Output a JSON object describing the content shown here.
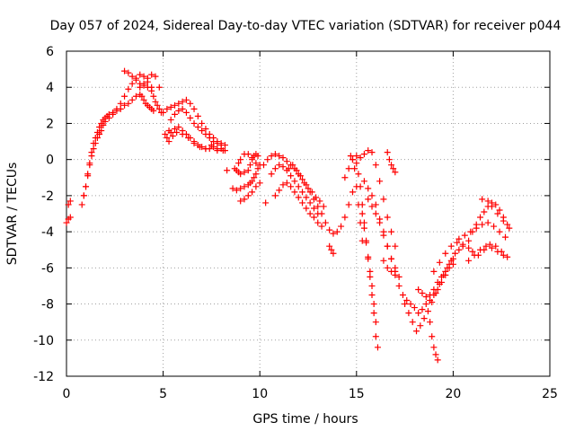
{
  "chart_data": {
    "type": "scatter",
    "title": "Day 057 of 2024, Sidereal Day-to-day VTEC variation (SDTVAR) for receiver p044",
    "xlabel": "GPS time / hours",
    "ylabel": "SDTVAR / TECUs",
    "xlim": [
      0,
      25
    ],
    "ylim": [
      -12,
      6
    ],
    "x_ticks": [
      0,
      5,
      10,
      15,
      20,
      25
    ],
    "y_ticks": [
      -12,
      -10,
      -8,
      -6,
      -4,
      -2,
      0,
      2,
      4,
      6
    ],
    "x_tick_labels": [
      "0",
      "5",
      "10",
      "15",
      "20",
      "25"
    ],
    "y_tick_labels": [
      "-12",
      "-10",
      "-8",
      "-6",
      "-4",
      "-2",
      "0",
      "2",
      "4",
      "6"
    ],
    "grid": true,
    "marker": "plus",
    "color": "#ff0000",
    "series": [
      {
        "x": [
          0.0,
          0.1,
          0.2,
          0.1,
          0.2
        ],
        "y": [
          -3.5,
          -3.3,
          -3.2,
          -2.5,
          -2.3
        ]
      },
      {
        "x": [
          0.8,
          0.9,
          1.0,
          1.1,
          1.2,
          1.3,
          1.4,
          1.5,
          1.6,
          1.7,
          1.8,
          1.9,
          2.0,
          2.1,
          2.2,
          2.4,
          2.6,
          2.8,
          3.0,
          3.2,
          3.4,
          3.6,
          3.8,
          3.9,
          4.0,
          4.1,
          4.2,
          4.3,
          4.4,
          4.5
        ],
        "y": [
          -2.5,
          -2.0,
          -1.5,
          -0.8,
          -0.2,
          0.4,
          0.9,
          1.2,
          1.5,
          1.8,
          2.0,
          2.2,
          2.3,
          2.4,
          2.5,
          2.6,
          2.7,
          2.8,
          3.0,
          3.1,
          3.3,
          3.5,
          3.6,
          3.5,
          3.3,
          3.1,
          3.0,
          2.9,
          2.8,
          2.7
        ]
      },
      {
        "x": [
          0.9,
          1.0,
          1.1,
          1.2,
          1.3,
          1.4,
          1.5,
          1.6,
          1.7,
          1.8,
          1.9,
          2.0,
          2.2,
          2.4,
          2.6,
          2.8,
          3.0,
          3.2,
          3.4,
          3.6,
          3.8,
          4.0,
          4.2,
          4.4
        ],
        "y": [
          -2.0,
          -1.5,
          -0.9,
          -0.3,
          0.2,
          0.6,
          0.9,
          1.2,
          1.4,
          1.6,
          1.9,
          2.1,
          2.3,
          2.5,
          2.8,
          3.1,
          3.5,
          3.9,
          4.2,
          4.5,
          4.7,
          4.6,
          4.3,
          4.0
        ]
      },
      {
        "x": [
          3.0,
          3.2,
          3.4,
          3.6,
          3.8,
          4.0,
          4.2,
          4.4,
          4.5,
          4.6,
          4.7,
          4.8,
          4.9
        ],
        "y": [
          4.9,
          4.8,
          4.6,
          4.4,
          4.2,
          4.1,
          4.0,
          3.8,
          3.5,
          3.2,
          3.0,
          2.8,
          2.6
        ]
      },
      {
        "x": [
          3.8,
          4.0,
          4.2,
          4.4,
          4.6,
          4.8
        ],
        "y": [
          4.0,
          4.2,
          4.5,
          4.7,
          4.6,
          4.0
        ]
      },
      {
        "x": [
          5.0,
          5.2,
          5.4,
          5.6,
          5.8,
          6.0,
          6.2,
          6.4,
          6.6,
          6.8,
          7.0,
          7.2,
          7.4,
          7.6,
          7.8,
          8.0,
          8.2
        ],
        "y": [
          2.6,
          2.8,
          2.9,
          3.0,
          3.1,
          3.2,
          3.3,
          3.1,
          2.8,
          2.4,
          2.0,
          1.7,
          1.4,
          1.2,
          1.0,
          0.9,
          0.8
        ]
      },
      {
        "x": [
          5.4,
          5.6,
          5.8,
          6.0,
          6.2,
          6.4,
          6.6,
          6.8,
          7.0,
          7.2,
          7.4,
          7.6,
          7.8,
          8.0
        ],
        "y": [
          2.2,
          2.5,
          2.7,
          2.8,
          2.6,
          2.3,
          2.0,
          1.8,
          1.6,
          1.4,
          1.2,
          1.0,
          0.9,
          0.8
        ]
      },
      {
        "x": [
          5.2,
          5.4,
          5.6,
          5.8,
          6.0,
          6.2,
          6.4,
          6.6,
          6.8,
          7.0,
          7.2,
          7.4,
          7.6,
          7.8,
          8.0,
          8.2
        ],
        "y": [
          1.2,
          1.5,
          1.7,
          1.8,
          1.6,
          1.4,
          1.2,
          1.0,
          0.8,
          0.7,
          0.6,
          0.6,
          0.7,
          0.5,
          0.6,
          0.5
        ]
      },
      {
        "x": [
          5.3,
          5.5,
          5.7,
          6.0,
          6.3,
          6.6,
          6.9,
          7.2,
          7.5,
          7.8,
          8.1
        ],
        "y": [
          1.0,
          1.3,
          1.5,
          1.4,
          1.2,
          0.9,
          0.7,
          0.6,
          0.8,
          0.6,
          0.5
        ]
      },
      {
        "x": [
          5.1,
          5.3
        ],
        "y": [
          1.4,
          1.6
        ]
      },
      {
        "x": [
          8.3
        ],
        "y": [
          -0.6
        ]
      },
      {
        "x": [
          8.7,
          8.8,
          8.9,
          9.0,
          9.2,
          9.4,
          9.5,
          9.6,
          9.7,
          9.8,
          9.9
        ],
        "y": [
          -0.5,
          -0.6,
          -0.7,
          -0.8,
          -0.7,
          -0.6,
          -0.3,
          0.0,
          0.2,
          0.3,
          0.2
        ]
      },
      {
        "x": [
          8.9,
          9.0,
          9.2,
          9.4,
          9.6,
          9.8
        ],
        "y": [
          -0.2,
          0.0,
          0.3,
          0.3,
          0.1,
          -0.2
        ]
      },
      {
        "x": [
          8.6,
          8.8,
          9.0,
          9.2,
          9.4,
          9.5,
          9.6,
          9.7,
          9.8,
          9.9,
          10.0
        ],
        "y": [
          -1.6,
          -1.7,
          -1.6,
          -1.5,
          -1.4,
          -1.3,
          -1.2,
          -1.0,
          -0.8,
          -0.5,
          -0.3
        ]
      },
      {
        "x": [
          9.0,
          9.2,
          9.4,
          9.6,
          9.8,
          10.0
        ],
        "y": [
          -2.3,
          -2.2,
          -2.0,
          -1.8,
          -1.5,
          -1.3
        ]
      },
      {
        "x": [
          10.3
        ],
        "y": [
          -2.4
        ]
      },
      {
        "x": [
          10.2,
          10.4,
          10.6,
          10.8,
          11.0,
          11.2,
          11.4,
          11.6,
          11.8,
          12.0,
          12.2,
          12.4,
          12.6,
          12.8,
          13.0,
          13.2,
          13.4,
          13.6,
          13.8,
          14.0,
          14.2,
          14.4,
          14.6,
          14.8
        ],
        "y": [
          -0.3,
          0.0,
          0.2,
          0.3,
          0.2,
          0.1,
          -0.1,
          -0.3,
          -0.5,
          -0.8,
          -1.1,
          -1.4,
          -1.8,
          -2.2,
          -2.6,
          -3.0,
          -3.5,
          -3.9,
          -4.1,
          -4.0,
          -3.7,
          -3.2,
          -2.5,
          -1.8
        ]
      },
      {
        "x": [
          10.6,
          10.8,
          11.0,
          11.2,
          11.4,
          11.6,
          11.8,
          12.0,
          12.2,
          12.4,
          12.6,
          12.8,
          13.0
        ],
        "y": [
          -0.8,
          -0.5,
          -0.3,
          -0.4,
          -0.6,
          -0.9,
          -1.2,
          -1.5,
          -1.8,
          -2.1,
          -2.4,
          -2.7,
          -3.0
        ]
      },
      {
        "x": [
          10.8,
          11.0,
          11.2,
          11.4,
          11.6,
          11.8,
          12.0,
          12.2,
          12.4,
          12.6,
          12.8,
          13.0,
          13.2
        ],
        "y": [
          -2.0,
          -1.7,
          -1.4,
          -1.3,
          -1.5,
          -1.8,
          -2.1,
          -2.4,
          -2.7,
          -3.0,
          -3.2,
          -3.5,
          -3.7
        ]
      },
      {
        "x": [
          11.5,
          11.7,
          11.9,
          12.1,
          12.3,
          12.5,
          12.7,
          12.9,
          13.1,
          13.3
        ],
        "y": [
          -0.5,
          -0.3,
          -0.6,
          -0.9,
          -1.3,
          -1.6,
          -1.8,
          -2.1,
          -2.3,
          -2.6
        ]
      },
      {
        "x": [
          13.6,
          13.7,
          13.8
        ],
        "y": [
          -4.8,
          -5.0,
          -5.2
        ]
      },
      {
        "x": [
          14.4,
          14.6,
          14.8,
          15.0,
          15.2,
          15.4,
          15.6,
          15.8,
          16.0,
          16.2,
          16.4,
          16.6,
          16.8,
          17.0
        ],
        "y": [
          -1.0,
          -0.5,
          0.0,
          0.2,
          0.1,
          0.3,
          0.5,
          0.4,
          -0.3,
          -1.2,
          -2.2,
          -3.2,
          -4.0,
          -4.8
        ]
      },
      {
        "x": [
          14.7,
          14.8,
          14.9,
          15.0,
          15.1,
          15.2,
          15.3
        ],
        "y": [
          0.2,
          0.0,
          -0.5,
          -1.5,
          -2.5,
          -3.5,
          -4.5
        ]
      },
      {
        "x": [
          15.0,
          15.1,
          15.2,
          15.3,
          15.4,
          15.5,
          15.6,
          15.7,
          15.8,
          15.9,
          16.0
        ],
        "y": [
          -0.2,
          -0.8,
          -1.5,
          -2.5,
          -3.5,
          -4.5,
          -5.5,
          -6.5,
          -7.5,
          -8.5,
          -9.8
        ]
      },
      {
        "x": [
          15.3,
          15.4,
          15.5,
          15.6,
          15.7,
          15.8,
          15.9,
          16.0,
          16.1
        ],
        "y": [
          -3.0,
          -3.8,
          -4.6,
          -5.4,
          -6.2,
          -7.0,
          -8.0,
          -9.0,
          -10.4
        ]
      },
      {
        "x": [
          15.4,
          15.6,
          15.8,
          16.0,
          16.2,
          16.4,
          16.6,
          16.8,
          17.0,
          17.2
        ],
        "y": [
          -1.2,
          -1.6,
          -2.0,
          -2.5,
          -3.3,
          -4.0,
          -4.8,
          -5.5,
          -6.0,
          -6.5
        ]
      },
      {
        "x": [
          15.6,
          15.8,
          16.0,
          16.2,
          16.4,
          16.6,
          16.8,
          17.0
        ],
        "y": [
          -2.2,
          -2.6,
          -3.0,
          -3.5,
          -4.2,
          -4.8,
          -5.5,
          -6.2
        ]
      },
      {
        "x": [
          16.6,
          16.7,
          16.8,
          16.9,
          17.0
        ],
        "y": [
          0.4,
          0.0,
          -0.3,
          -0.5,
          -0.7
        ]
      },
      {
        "x": [
          16.4,
          16.6,
          16.8,
          17.0
        ],
        "y": [
          -5.6,
          -6.0,
          -6.2,
          -6.4
        ]
      },
      {
        "x": [
          17.2,
          17.4,
          17.6,
          17.8,
          18.0,
          18.2,
          18.4,
          18.6,
          18.8,
          19.0,
          19.2,
          19.4,
          19.6,
          19.8,
          20.0
        ],
        "y": [
          -7.0,
          -7.5,
          -7.8,
          -8.0,
          -8.2,
          -8.5,
          -8.3,
          -8.0,
          -7.5,
          -7.2,
          -6.8,
          -6.5,
          -6.2,
          -5.8,
          -5.5
        ]
      },
      {
        "x": [
          17.5,
          17.7,
          17.9,
          18.1,
          18.3,
          18.5,
          18.7,
          18.9,
          19.1,
          19.3,
          19.5,
          19.7,
          19.9,
          20.1,
          20.3,
          20.5
        ],
        "y": [
          -8.0,
          -8.5,
          -9.0,
          -9.5,
          -9.2,
          -8.8,
          -8.4,
          -7.9,
          -7.4,
          -6.9,
          -6.4,
          -6.0,
          -5.6,
          -5.2,
          -5.0,
          -4.8
        ]
      },
      {
        "x": [
          18.2,
          18.4,
          18.6,
          18.8,
          19.0,
          19.2,
          19.4,
          19.6,
          19.8,
          20.0
        ],
        "y": [
          -7.2,
          -7.4,
          -7.6,
          -7.8,
          -7.5,
          -7.2,
          -6.8,
          -6.4,
          -6.0,
          -5.8
        ]
      },
      {
        "x": [
          18.8,
          18.9,
          19.0,
          19.1,
          19.2
        ],
        "y": [
          -9.0,
          -9.8,
          -10.4,
          -10.8,
          -11.1
        ]
      },
      {
        "x": [
          19.0,
          19.3,
          19.6,
          19.9,
          20.2,
          20.5,
          20.8,
          21.0,
          21.3,
          21.6,
          21.9,
          22.2,
          22.5,
          22.8
        ],
        "y": [
          -6.2,
          -5.7,
          -5.2,
          -4.8,
          -4.6,
          -4.7,
          -4.9,
          -5.1,
          -5.3,
          -5.0,
          -4.7,
          -4.8,
          -5.1,
          -5.4
        ]
      },
      {
        "x": [
          20.3,
          20.6,
          20.9,
          21.2,
          21.5,
          21.8,
          22.1,
          22.4,
          22.7
        ],
        "y": [
          -4.4,
          -4.2,
          -4.0,
          -3.8,
          -3.6,
          -3.5,
          -3.7,
          -4.0,
          -4.3
        ]
      },
      {
        "x": [
          20.8,
          21.0,
          21.2,
          21.4,
          21.6,
          21.8,
          22.0,
          22.2,
          22.4,
          22.6,
          22.8
        ],
        "y": [
          -4.5,
          -4.0,
          -3.6,
          -3.2,
          -2.9,
          -2.6,
          -2.4,
          -2.5,
          -2.8,
          -3.2,
          -3.6
        ]
      },
      {
        "x": [
          21.5,
          21.8,
          22.0,
          22.3,
          22.6,
          22.9
        ],
        "y": [
          -2.2,
          -2.3,
          -2.6,
          -3.0,
          -3.4,
          -3.8
        ]
      },
      {
        "x": [
          20.8,
          21.1,
          21.4,
          21.7,
          22.0,
          22.3,
          22.6
        ],
        "y": [
          -5.6,
          -5.3,
          -5.0,
          -4.8,
          -4.9,
          -5.1,
          -5.3
        ]
      }
    ]
  }
}
